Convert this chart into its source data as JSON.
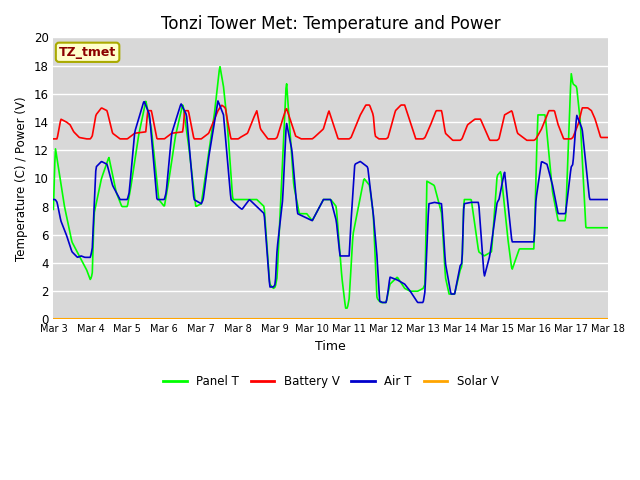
{
  "title": "Tonzi Tower Met: Temperature and Power",
  "xlabel": "Time",
  "ylabel": "Temperature (C) / Power (V)",
  "ylim": [
    0,
    20
  ],
  "tick_labels": [
    "Mar 3",
    "Mar 4",
    "Mar 5",
    "Mar 6",
    "Mar 7",
    "Mar 8",
    "Mar 9",
    "Mar 10",
    "Mar 11",
    "Mar 12",
    "Mar 13",
    "Mar 14",
    "Mar 15",
    "Mar 16",
    "Mar 17",
    "Mar 18"
  ],
  "annotation_text": "TZ_tmet",
  "annotation_color": "#8B0000",
  "annotation_bg": "#FFFFCC",
  "annotation_edge": "#AAAA00",
  "fig_bg_color": "#FFFFFF",
  "plot_bg_color": "#D8D8D8",
  "grid_color": "#FFFFFF",
  "line_colors": {
    "panel_t": "#00FF00",
    "battery_v": "#FF0000",
    "air_t": "#0000CC",
    "solar_v": "#FFA500"
  },
  "legend_labels": [
    "Panel T",
    "Battery V",
    "Air T",
    "Solar V"
  ],
  "title_fontsize": 12,
  "panel_t_pts_x": [
    0.0,
    0.05,
    0.15,
    0.3,
    0.5,
    0.7,
    0.9,
    1.0,
    1.05,
    1.1,
    1.3,
    1.5,
    1.7,
    1.85,
    2.0,
    2.1,
    2.3,
    2.5,
    2.65,
    2.85,
    3.0,
    3.1,
    3.3,
    3.5,
    3.65,
    3.85,
    4.0,
    4.1,
    4.35,
    4.5,
    4.6,
    4.7,
    4.85,
    5.0,
    5.1,
    5.3,
    5.5,
    5.7,
    5.85,
    5.95,
    6.0,
    6.05,
    6.15,
    6.3,
    6.5,
    6.65,
    6.85,
    7.0,
    7.1,
    7.3,
    7.5,
    7.65,
    7.8,
    7.9,
    7.95,
    8.0,
    8.1,
    8.4,
    8.55,
    8.65,
    8.75,
    8.85,
    9.0,
    9.1,
    9.3,
    9.5,
    9.65,
    9.85,
    10.0,
    10.05,
    10.1,
    10.3,
    10.5,
    10.6,
    10.7,
    10.85,
    11.0,
    11.05,
    11.1,
    11.3,
    11.5,
    11.65,
    11.85,
    12.0,
    12.1,
    12.3,
    12.4,
    12.6,
    12.85,
    13.0,
    13.05,
    13.1,
    13.3,
    13.5,
    13.65,
    13.85,
    14.0,
    14.05,
    14.15,
    14.25,
    14.4,
    14.6,
    14.8,
    15.0
  ],
  "panel_t_pts_y": [
    7.8,
    12.2,
    10.5,
    8.0,
    5.5,
    4.5,
    3.5,
    2.8,
    3.2,
    7.5,
    10.0,
    11.5,
    9.0,
    8.0,
    8.0,
    9.5,
    13.0,
    15.5,
    13.5,
    8.5,
    8.0,
    9.5,
    13.0,
    15.3,
    12.5,
    8.0,
    8.2,
    10.0,
    14.5,
    18.0,
    16.5,
    14.0,
    8.5,
    8.5,
    8.5,
    8.5,
    8.5,
    8.0,
    2.5,
    2.2,
    2.3,
    3.0,
    8.5,
    17.0,
    9.5,
    7.5,
    7.5,
    7.0,
    7.5,
    8.5,
    8.5,
    8.0,
    3.0,
    0.8,
    0.8,
    1.5,
    6.0,
    10.0,
    9.5,
    7.5,
    1.5,
    1.2,
    1.2,
    2.5,
    3.0,
    2.2,
    2.0,
    2.0,
    2.2,
    2.5,
    9.8,
    9.5,
    7.5,
    3.0,
    1.8,
    1.8,
    3.5,
    3.8,
    8.5,
    8.5,
    4.8,
    4.5,
    4.8,
    10.2,
    10.5,
    5.5,
    3.5,
    5.0,
    5.0,
    5.0,
    10.2,
    14.5,
    14.5,
    9.0,
    7.0,
    7.0,
    17.5,
    16.7,
    16.5,
    14.0,
    6.5,
    6.5,
    6.5,
    6.5
  ],
  "battery_v_pts_x": [
    0.0,
    0.1,
    0.2,
    0.35,
    0.45,
    0.55,
    0.7,
    0.9,
    1.0,
    1.05,
    1.15,
    1.3,
    1.45,
    1.6,
    1.8,
    2.0,
    2.05,
    2.2,
    2.5,
    2.55,
    2.65,
    2.8,
    3.0,
    3.05,
    3.2,
    3.5,
    3.55,
    3.65,
    3.8,
    4.0,
    4.05,
    4.2,
    4.45,
    4.55,
    4.65,
    4.7,
    4.8,
    5.0,
    5.05,
    5.25,
    5.4,
    5.5,
    5.6,
    5.8,
    6.0,
    6.05,
    6.2,
    6.3,
    6.4,
    6.55,
    6.7,
    7.0,
    7.05,
    7.3,
    7.45,
    7.55,
    7.7,
    8.0,
    8.05,
    8.3,
    8.45,
    8.55,
    8.65,
    8.7,
    8.8,
    9.0,
    9.05,
    9.25,
    9.4,
    9.5,
    9.65,
    9.8,
    10.0,
    10.05,
    10.2,
    10.35,
    10.5,
    10.6,
    10.8,
    11.0,
    11.05,
    11.2,
    11.4,
    11.55,
    11.8,
    12.0,
    12.05,
    12.2,
    12.4,
    12.55,
    12.8,
    13.0,
    13.05,
    13.2,
    13.4,
    13.55,
    13.65,
    13.8,
    14.0,
    14.05,
    14.2,
    14.3,
    14.45,
    14.55,
    14.65,
    14.8,
    15.0
  ],
  "battery_v_pts_y": [
    12.8,
    12.8,
    14.2,
    14.0,
    13.8,
    13.3,
    12.9,
    12.8,
    12.8,
    13.0,
    14.5,
    15.0,
    14.8,
    13.2,
    12.8,
    12.8,
    12.9,
    13.2,
    13.3,
    14.8,
    14.8,
    12.8,
    12.8,
    12.9,
    13.2,
    13.3,
    14.8,
    14.8,
    12.8,
    12.8,
    12.9,
    13.2,
    14.8,
    15.2,
    15.0,
    14.2,
    12.8,
    12.8,
    12.9,
    13.2,
    14.2,
    14.8,
    13.5,
    12.8,
    12.8,
    12.9,
    14.2,
    15.0,
    14.2,
    13.0,
    12.8,
    12.8,
    12.9,
    13.5,
    14.8,
    14.0,
    12.8,
    12.8,
    12.9,
    14.5,
    15.2,
    15.2,
    14.5,
    13.0,
    12.8,
    12.8,
    12.9,
    14.8,
    15.2,
    15.2,
    14.0,
    12.8,
    12.8,
    12.9,
    13.8,
    14.8,
    14.8,
    13.2,
    12.7,
    12.7,
    12.8,
    13.8,
    14.2,
    14.2,
    12.7,
    12.7,
    12.8,
    14.5,
    14.8,
    13.2,
    12.7,
    12.7,
    12.8,
    13.5,
    14.8,
    14.8,
    13.8,
    12.8,
    12.8,
    12.9,
    13.9,
    15.0,
    15.0,
    14.8,
    14.2,
    12.9,
    12.9
  ],
  "air_t_pts_x": [
    0.0,
    0.05,
    0.1,
    0.2,
    0.35,
    0.5,
    0.65,
    0.75,
    0.85,
    1.0,
    1.05,
    1.15,
    1.3,
    1.45,
    1.6,
    1.8,
    2.0,
    2.05,
    2.2,
    2.45,
    2.6,
    2.8,
    3.0,
    3.05,
    3.2,
    3.45,
    3.6,
    3.8,
    4.0,
    4.05,
    4.2,
    4.45,
    4.6,
    4.8,
    5.0,
    5.1,
    5.3,
    5.5,
    5.7,
    5.85,
    5.95,
    6.0,
    6.05,
    6.2,
    6.3,
    6.45,
    6.6,
    7.0,
    7.1,
    7.3,
    7.5,
    7.65,
    7.75,
    7.85,
    8.0,
    8.05,
    8.15,
    8.3,
    8.5,
    8.65,
    8.75,
    8.82,
    8.9,
    9.0,
    9.05,
    9.1,
    9.3,
    9.5,
    9.65,
    9.85,
    10.0,
    10.05,
    10.15,
    10.3,
    10.5,
    10.6,
    10.75,
    10.85,
    11.0,
    11.05,
    11.1,
    11.3,
    11.5,
    11.65,
    11.8,
    12.0,
    12.05,
    12.2,
    12.4,
    12.6,
    12.85,
    13.0,
    13.05,
    13.2,
    13.35,
    13.5,
    13.65,
    13.85,
    14.0,
    14.05,
    14.15,
    14.3,
    14.5,
    14.7,
    14.9,
    15.0
  ],
  "air_t_pts_y": [
    8.5,
    8.5,
    8.3,
    7.0,
    6.0,
    4.8,
    4.4,
    4.5,
    4.4,
    4.4,
    5.0,
    10.8,
    11.2,
    11.0,
    9.5,
    8.5,
    8.5,
    9.0,
    13.3,
    15.5,
    14.5,
    8.5,
    8.5,
    9.0,
    13.2,
    15.3,
    14.5,
    8.5,
    8.2,
    8.5,
    11.5,
    15.5,
    14.5,
    8.5,
    8.0,
    7.8,
    8.5,
    8.0,
    7.5,
    2.3,
    2.3,
    2.5,
    5.0,
    8.5,
    14.0,
    12.0,
    7.5,
    7.0,
    7.5,
    8.5,
    8.5,
    7.0,
    4.5,
    4.5,
    4.5,
    7.0,
    11.0,
    11.2,
    10.8,
    7.5,
    4.5,
    1.3,
    1.2,
    1.2,
    2.0,
    3.0,
    2.8,
    2.5,
    2.0,
    1.2,
    1.2,
    2.0,
    8.2,
    8.3,
    8.2,
    4.0,
    1.8,
    1.8,
    3.8,
    4.0,
    8.2,
    8.3,
    8.3,
    3.0,
    4.5,
    8.3,
    8.5,
    10.5,
    5.5,
    5.5,
    5.5,
    5.5,
    8.5,
    11.2,
    11.0,
    9.5,
    7.5,
    7.5,
    10.8,
    11.0,
    14.5,
    13.5,
    8.5,
    8.5,
    8.5,
    8.5
  ]
}
